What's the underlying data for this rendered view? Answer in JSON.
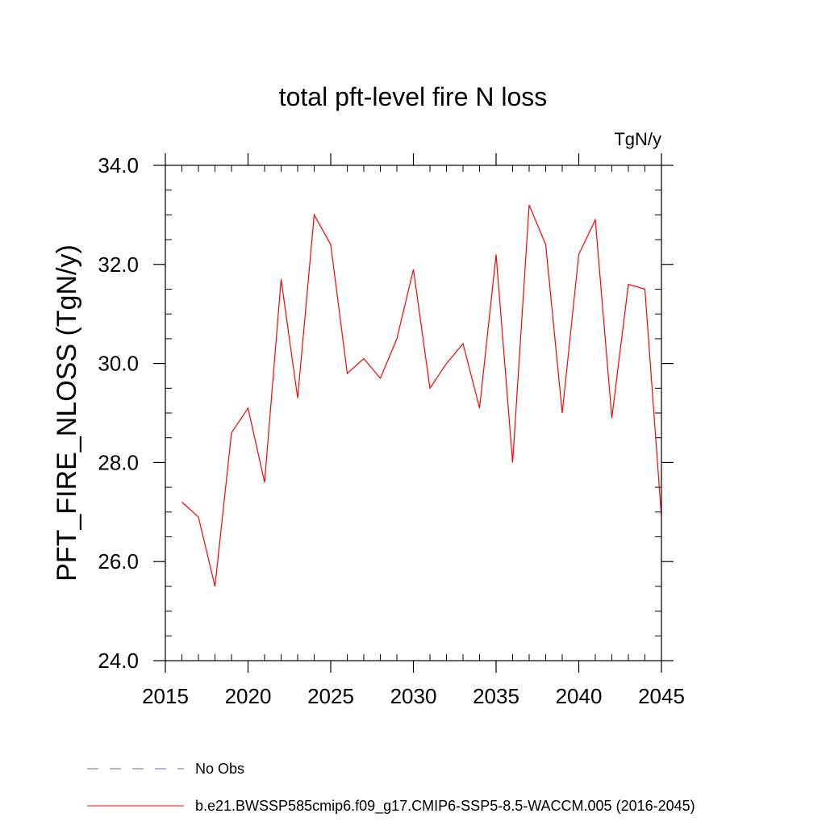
{
  "chart_data": {
    "type": "line",
    "title": "total pft-level fire N loss",
    "units": "TgN/y",
    "ylabel": "PFT_FIRE_NLOSS  (TgN/y)",
    "xlabel": "",
    "xlim": [
      2015,
      2045
    ],
    "ylim": [
      24.0,
      34.0
    ],
    "x_ticks": [
      2015,
      2020,
      2025,
      2030,
      2035,
      2040,
      2045
    ],
    "x_tick_labels": [
      "2015",
      "2020",
      "2025",
      "2030",
      "2035",
      "2040",
      "2045"
    ],
    "y_ticks": [
      24.0,
      26.0,
      28.0,
      30.0,
      32.0,
      34.0
    ],
    "y_tick_labels": [
      "24.0",
      "26.0",
      "28.0",
      "30.0",
      "32.0",
      "34.0"
    ],
    "grid": false,
    "legend_position": "bottom",
    "series": [
      {
        "name": "b.e21.BWSSP585cmip6.f09_g17.CMIP6-SSP5-8.5-WACCM.005 (2016-2045)",
        "color": "#ff0000",
        "style": "solid",
        "x": [
          2016,
          2017,
          2018,
          2019,
          2020,
          2021,
          2022,
          2023,
          2024,
          2025,
          2026,
          2027,
          2028,
          2029,
          2030,
          2031,
          2032,
          2033,
          2034,
          2035,
          2036,
          2037,
          2038,
          2039,
          2040,
          2041,
          2042,
          2043,
          2044,
          2045
        ],
        "y": [
          27.2,
          26.9,
          25.5,
          28.6,
          29.1,
          27.6,
          31.7,
          29.3,
          33.0,
          32.4,
          29.8,
          30.1,
          29.7,
          30.5,
          31.9,
          29.5,
          30.0,
          30.4,
          29.1,
          32.2,
          28.0,
          33.2,
          32.4,
          29.0,
          32.2,
          32.9,
          28.9,
          31.6,
          31.5,
          26.9
        ]
      }
    ],
    "legend": [
      {
        "label": "No Obs",
        "color": "#6666cc",
        "style": "dashed"
      },
      {
        "label": "b.e21.BWSSP585cmip6.f09_g17.CMIP6-SSP5-8.5-WACCM.005 (2016-2045)",
        "color": "#ff0000",
        "style": "solid"
      }
    ]
  }
}
